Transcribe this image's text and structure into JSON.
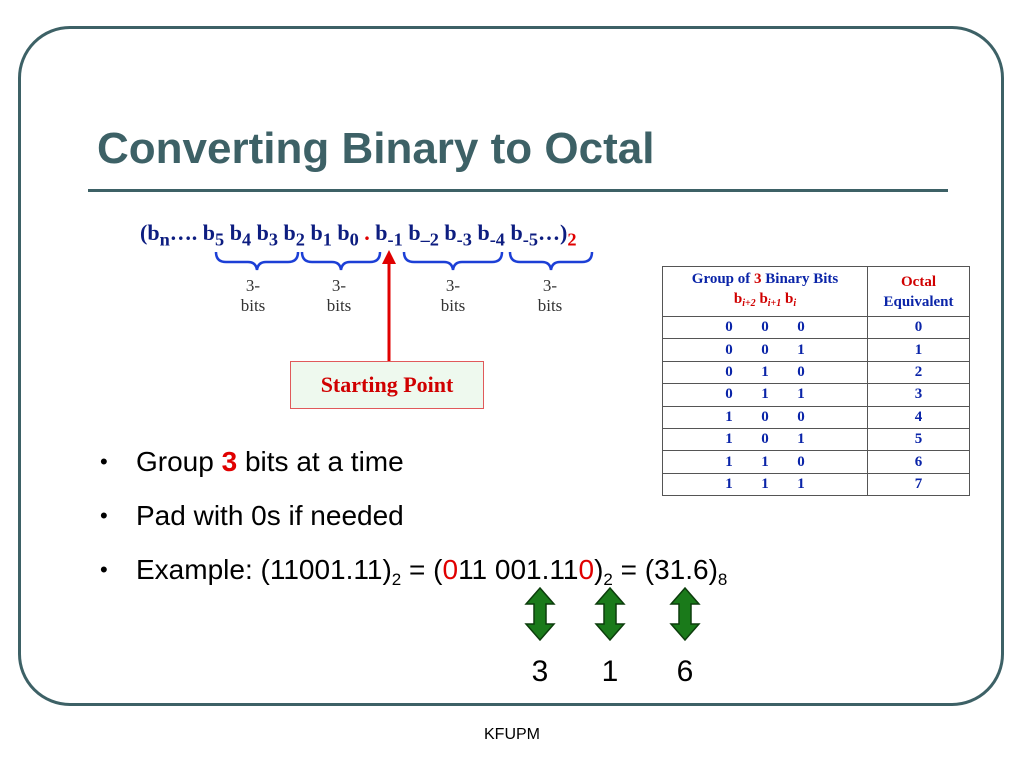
{
  "slide": {
    "title": "Converting Binary to Octal",
    "footer": "KFUPM"
  },
  "formula": {
    "open": "(b",
    "n": "n",
    "dots1": "…. b",
    "i5": "5",
    "sp_b4": " b",
    "i4": "4",
    "sp_b3": " b",
    "i3": "3",
    "sp_b2": " b",
    "i2": "2",
    "sp_b1": " b",
    "i1": "1",
    "sp_b0": " b",
    "i0": "0",
    "dot": " . ",
    "b_m1": "b",
    "im1": "-1",
    "sp_bm2": " b",
    "im2": "–2",
    "sp_bm3": " b",
    "im3": "-3",
    "sp_bm4": " b",
    "im4": "-4",
    "sp_bm5": " b",
    "im5": "-5",
    "close": "…)",
    "base": "2"
  },
  "group_labels": [
    "3-\nbits",
    "3-\nbits",
    "3-\nbits",
    "3-\nbits"
  ],
  "starting_point": "Starting Point",
  "table": {
    "header_group_prefix": "Group of ",
    "header_group_num": "3",
    "header_group_suffix": " Binary Bits",
    "header_sub_b1": "b",
    "header_sub_i2": "i+2",
    "header_sub_b2": " b",
    "header_sub_i1": "i+1",
    "header_sub_b3": " b",
    "header_sub_i": "i",
    "header_octal": "Octal",
    "header_equiv": "Equivalent",
    "rows": [
      {
        "bits": [
          "0",
          "0",
          "0"
        ],
        "octal": "0"
      },
      {
        "bits": [
          "0",
          "0",
          "1"
        ],
        "octal": "1"
      },
      {
        "bits": [
          "0",
          "1",
          "0"
        ],
        "octal": "2"
      },
      {
        "bits": [
          "0",
          "1",
          "1"
        ],
        "octal": "3"
      },
      {
        "bits": [
          "1",
          "0",
          "0"
        ],
        "octal": "4"
      },
      {
        "bits": [
          "1",
          "0",
          "1"
        ],
        "octal": "5"
      },
      {
        "bits": [
          "1",
          "1",
          "0"
        ],
        "octal": "6"
      },
      {
        "bits": [
          "1",
          "1",
          "1"
        ],
        "octal": "7"
      }
    ]
  },
  "bullets": {
    "b1_pre": "Group ",
    "b1_num": "3",
    "b1_post": " bits at a time",
    "b2": "Pad with 0s if needed",
    "b3_pre": "Example: (11001.11)",
    "b3_sub1": "2",
    "b3_eq1": " = (",
    "b3_pad1": "0",
    "b3_mid": "11 001.11",
    "b3_pad2": "0",
    "b3_close": ")",
    "b3_sub2": "2",
    "b3_eq2": " = (31.6)",
    "b3_sub3": "8"
  },
  "result_digits": [
    "3",
    "1",
    "6"
  ],
  "colors": {
    "title": "#3d6166",
    "formula": "#0d1d80",
    "highlight_red": "#e00000",
    "brace_blue": "#1c3fd6",
    "arrow_green": "#1a7a1a",
    "table_blue": "#0a24a8"
  }
}
